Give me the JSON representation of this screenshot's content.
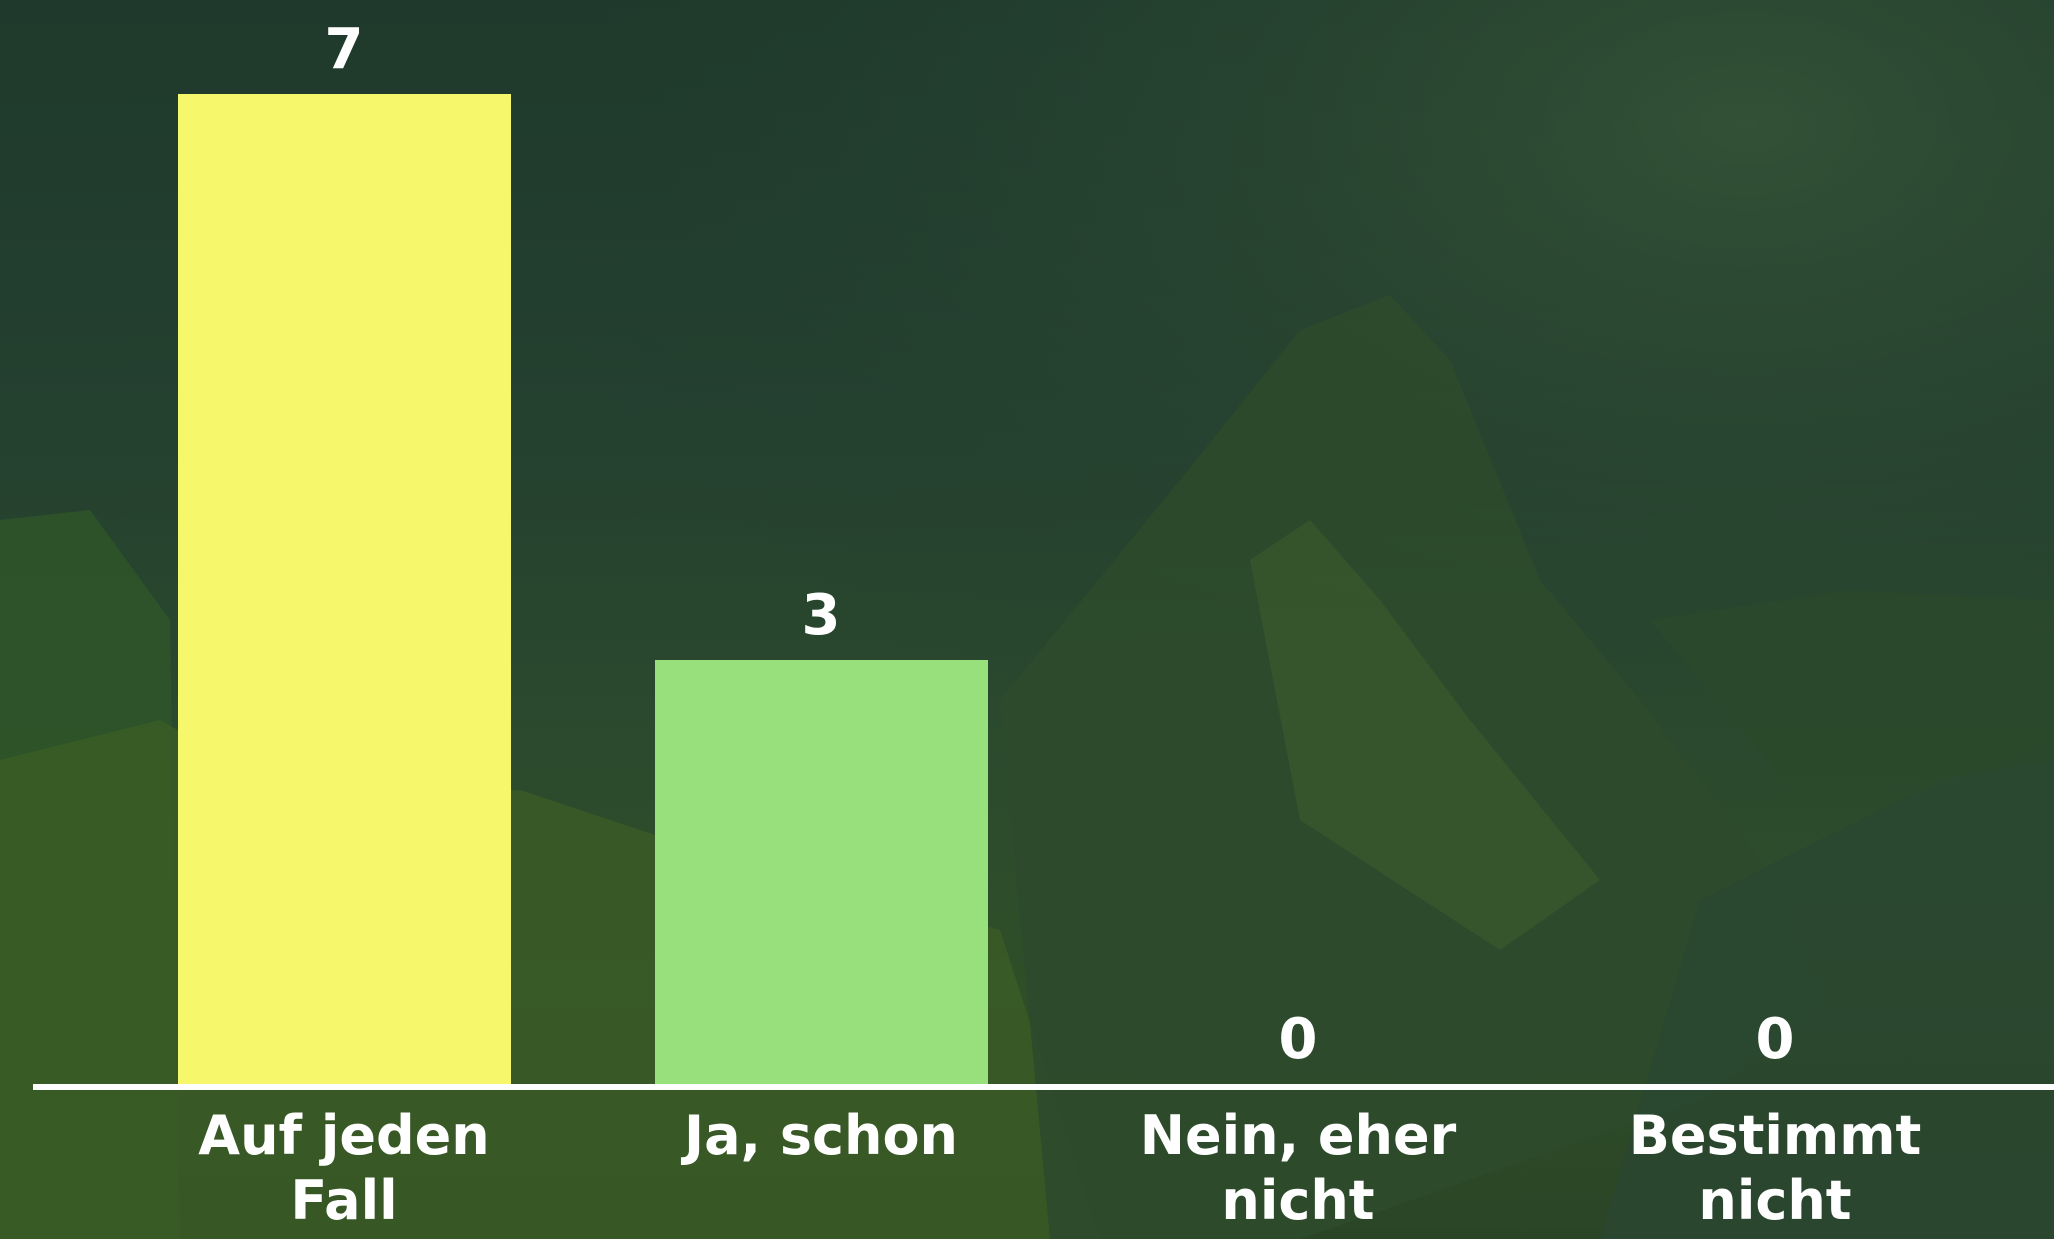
{
  "chart_data": {
    "type": "bar",
    "categories": [
      "Auf jeden Fall",
      "Ja, schon",
      "Nein, eher nicht",
      "Bestimmt nicht"
    ],
    "values": [
      7,
      3,
      0,
      0
    ],
    "colors": [
      "#f7f76b",
      "#98e07c",
      null,
      null
    ]
  }
}
